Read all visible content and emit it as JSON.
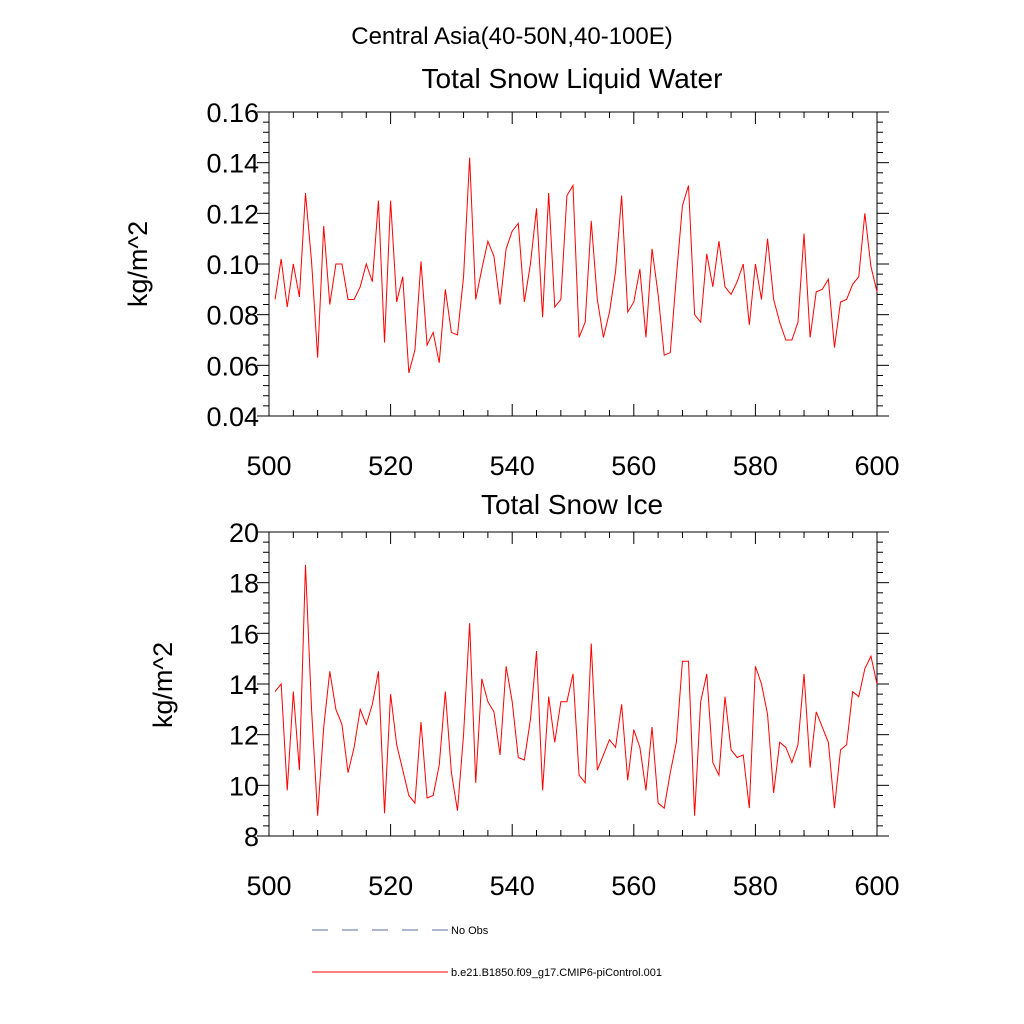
{
  "page_title": "Central Asia(40-50N,40-100E)",
  "legend": {
    "obs_label": "No Obs",
    "obs_color": "#5a6ea0",
    "model_label": "b.e21.B1850.f09_g17.CMIP6-piControl.001",
    "model_color": "#ff0000"
  },
  "chart_data": [
    {
      "type": "line",
      "title": "Total Snow Liquid Water",
      "xlabel": "",
      "ylabel": "kg/m^2",
      "xlim": [
        500,
        600
      ],
      "ylim": [
        0.04,
        0.16
      ],
      "xticks": [
        "500",
        "520",
        "540",
        "560",
        "580",
        "600"
      ],
      "yticks": [
        "0.04",
        "0.06",
        "0.08",
        "0.10",
        "0.12",
        "0.14",
        "0.16"
      ],
      "series": [
        {
          "name": "b.e21.B1850.f09_g17.CMIP6-piControl.001",
          "color": "#ff0000",
          "x_start": 501,
          "values": [
            0.086,
            0.102,
            0.083,
            0.1,
            0.087,
            0.128,
            0.101,
            0.063,
            0.115,
            0.084,
            0.1,
            0.1,
            0.086,
            0.086,
            0.091,
            0.1,
            0.093,
            0.125,
            0.069,
            0.125,
            0.085,
            0.095,
            0.057,
            0.066,
            0.101,
            0.068,
            0.073,
            0.061,
            0.09,
            0.073,
            0.072,
            0.095,
            0.142,
            0.086,
            0.098,
            0.109,
            0.103,
            0.084,
            0.106,
            0.113,
            0.116,
            0.085,
            0.1,
            0.122,
            0.079,
            0.128,
            0.083,
            0.086,
            0.127,
            0.131,
            0.071,
            0.077,
            0.117,
            0.086,
            0.071,
            0.081,
            0.097,
            0.127,
            0.081,
            0.085,
            0.098,
            0.071,
            0.106,
            0.088,
            0.064,
            0.065,
            0.095,
            0.123,
            0.131,
            0.08,
            0.077,
            0.104,
            0.091,
            0.109,
            0.091,
            0.088,
            0.093,
            0.1,
            0.076,
            0.1,
            0.086,
            0.11,
            0.086,
            0.077,
            0.07,
            0.07,
            0.077,
            0.112,
            0.071,
            0.089,
            0.09,
            0.094,
            0.067,
            0.085,
            0.086,
            0.092,
            0.095,
            0.12,
            0.099,
            0.089
          ]
        }
      ]
    },
    {
      "type": "line",
      "title": "Total Snow Ice",
      "xlabel": "",
      "ylabel": "kg/m^2",
      "xlim": [
        500,
        600
      ],
      "ylim": [
        8,
        20
      ],
      "xticks": [
        "500",
        "520",
        "540",
        "560",
        "580",
        "600"
      ],
      "yticks": [
        "8",
        "10",
        "12",
        "14",
        "16",
        "18",
        "20"
      ],
      "series": [
        {
          "name": "b.e21.B1850.f09_g17.CMIP6-piControl.001",
          "color": "#ff0000",
          "x_start": 501,
          "values": [
            13.7,
            14.0,
            9.8,
            13.7,
            10.6,
            18.7,
            13.0,
            8.8,
            12.3,
            14.5,
            13.0,
            12.4,
            10.5,
            11.5,
            13.0,
            12.4,
            13.2,
            14.5,
            8.9,
            13.6,
            11.6,
            10.6,
            9.6,
            9.3,
            12.5,
            9.5,
            9.6,
            10.8,
            13.7,
            10.5,
            9.0,
            12.0,
            16.4,
            10.1,
            14.2,
            13.3,
            12.9,
            11.2,
            14.7,
            13.3,
            11.1,
            11.0,
            12.6,
            15.3,
            9.8,
            13.5,
            11.7,
            13.3,
            13.3,
            14.4,
            10.4,
            10.1,
            15.6,
            10.6,
            11.2,
            11.8,
            11.5,
            13.2,
            10.2,
            12.2,
            11.5,
            9.8,
            12.3,
            9.3,
            9.1,
            10.5,
            11.7,
            14.9,
            14.9,
            8.8,
            13.3,
            14.4,
            10.9,
            10.4,
            13.5,
            11.4,
            11.1,
            11.2,
            9.1,
            14.7,
            14.0,
            12.8,
            9.7,
            11.7,
            11.5,
            10.9,
            11.6,
            14.4,
            10.7,
            12.9,
            12.3,
            11.7,
            9.1,
            11.4,
            11.6,
            13.7,
            13.5,
            14.6,
            15.1,
            14.0
          ]
        }
      ]
    }
  ]
}
